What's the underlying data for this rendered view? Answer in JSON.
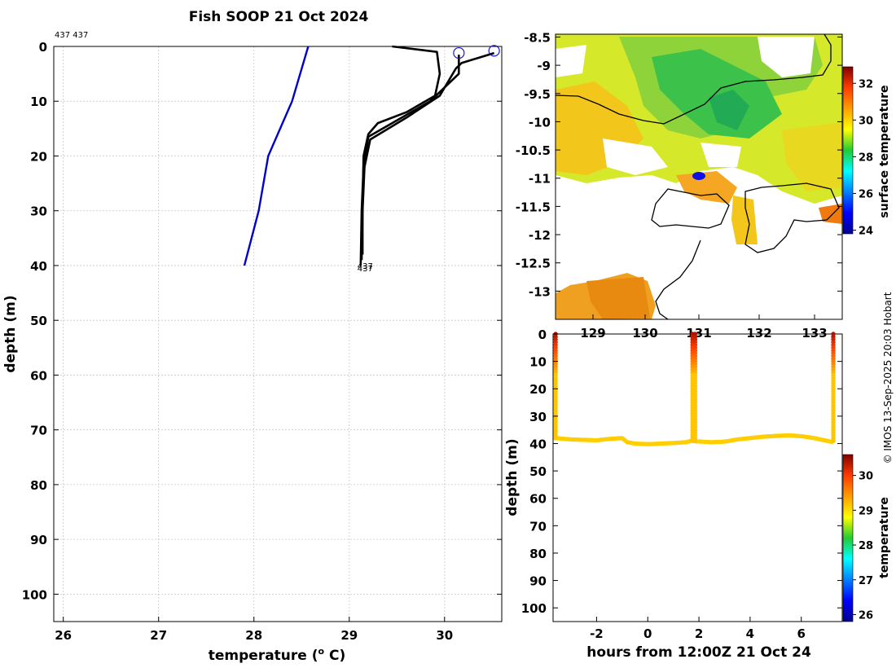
{
  "title": "Fish SOOP 21 Oct 2024",
  "header_note": "437 437",
  "credit": "© IMOS 13-Sep-2025 20:03 Hobart",
  "colors": {
    "profile_line": "#000000",
    "climatology_line": "#0000cc",
    "marker": "#1a1acc"
  },
  "chart_data": [
    {
      "type": "line",
      "name": "temperature-depth-profile",
      "xlabel": "temperature (",
      "xlabel_sup": "o",
      "xlabel_suffix": " C)",
      "ylabel": "depth (m)",
      "xlim": [
        25.9,
        30.6
      ],
      "ylim": [
        105,
        0
      ],
      "xticks": [
        26,
        27,
        28,
        29,
        30
      ],
      "yticks": [
        0,
        10,
        20,
        30,
        40,
        50,
        60,
        70,
        80,
        90,
        100
      ],
      "grid": true,
      "series": [
        {
          "name": "climatology",
          "color": "#0000cc",
          "points": [
            [
              28.57,
              0
            ],
            [
              28.4,
              10
            ],
            [
              28.15,
              20
            ],
            [
              28.05,
              30
            ],
            [
              27.9,
              40
            ]
          ]
        },
        {
          "name": "cast 1",
          "color": "#000000",
          "points": [
            [
              29.45,
              0
            ],
            [
              29.92,
              1
            ],
            [
              29.95,
              5
            ],
            [
              29.9,
              9
            ],
            [
              29.6,
              12
            ],
            [
              29.3,
              14
            ],
            [
              29.2,
              16
            ],
            [
              29.15,
              20
            ],
            [
              29.14,
              30
            ],
            [
              29.14,
              38
            ]
          ]
        },
        {
          "name": "cast 2",
          "color": "#000000",
          "points": [
            [
              30.52,
              1.2
            ],
            [
              30.18,
              3
            ],
            [
              30.12,
              4
            ],
            [
              29.95,
              9
            ],
            [
              29.6,
              13
            ],
            [
              29.22,
              17
            ],
            [
              29.16,
              22
            ],
            [
              29.14,
              30
            ],
            [
              29.13,
              39
            ]
          ]
        },
        {
          "name": "cast 3",
          "color": "#000000",
          "points": [
            [
              30.15,
              1.5
            ],
            [
              30.15,
              5
            ],
            [
              29.85,
              10
            ],
            [
              29.4,
              14.5
            ],
            [
              29.2,
              16.5
            ],
            [
              29.15,
              22
            ],
            [
              29.13,
              30
            ],
            [
              29.12,
              40
            ]
          ]
        }
      ],
      "markers": [
        [
          30.15,
          1.2
        ],
        [
          30.52,
          0.8
        ]
      ],
      "end_labels": [
        "437",
        "437"
      ]
    },
    {
      "type": "heatmap",
      "name": "sea-surface-temperature-map",
      "xticks": [
        "129",
        "130",
        "131",
        "132",
        "133"
      ],
      "yticks": [
        -8.5,
        -9,
        -9.5,
        -10,
        -10.5,
        -11,
        -11.5,
        -12,
        -12.5,
        -13
      ],
      "ylim": [
        -13.5,
        -8.45
      ],
      "colorbar": {
        "label": "surface temperature",
        "range": [
          23.8,
          32.9
        ],
        "ticks": [
          24,
          26,
          28,
          30,
          32
        ]
      }
    },
    {
      "type": "scatter",
      "name": "depth-time-series",
      "xlabel": "hours from 12:00Z 21 Oct 24",
      "ylabel": "depth (m)",
      "xlim": [
        -3.7,
        7.6
      ],
      "ylim": [
        105,
        0
      ],
      "xticks": [
        -2,
        0,
        2,
        4,
        6
      ],
      "yticks": [
        0,
        10,
        20,
        30,
        40,
        50,
        60,
        70,
        80,
        90,
        100
      ],
      "bottom_trace": [
        [
          -3.6,
          38
        ],
        [
          -3.0,
          38.5
        ],
        [
          -2.0,
          38.8
        ],
        [
          -1.5,
          38.3
        ],
        [
          -1.0,
          38.0
        ],
        [
          -0.8,
          39.5
        ],
        [
          -0.5,
          40.0
        ],
        [
          0.0,
          40.2
        ],
        [
          0.5,
          40.0
        ],
        [
          1.0,
          39.8
        ],
        [
          1.5,
          39.5
        ],
        [
          1.7,
          39.0
        ],
        [
          1.9,
          39.2
        ],
        [
          2.5,
          39.5
        ],
        [
          3.0,
          39.3
        ],
        [
          3.5,
          38.5
        ],
        [
          4.0,
          38.0
        ],
        [
          4.5,
          37.5
        ],
        [
          5.0,
          37.2
        ],
        [
          5.5,
          37.0
        ],
        [
          6.0,
          37.3
        ],
        [
          6.5,
          38.0
        ],
        [
          7.0,
          39.0
        ],
        [
          7.25,
          39.5
        ]
      ],
      "casts_x": [
        -3.6,
        1.75,
        1.85,
        7.25
      ],
      "colorbar": {
        "label": "temperature",
        "range": [
          25.8,
          30.6
        ],
        "ticks": [
          26,
          27,
          28,
          29,
          30
        ]
      }
    }
  ]
}
